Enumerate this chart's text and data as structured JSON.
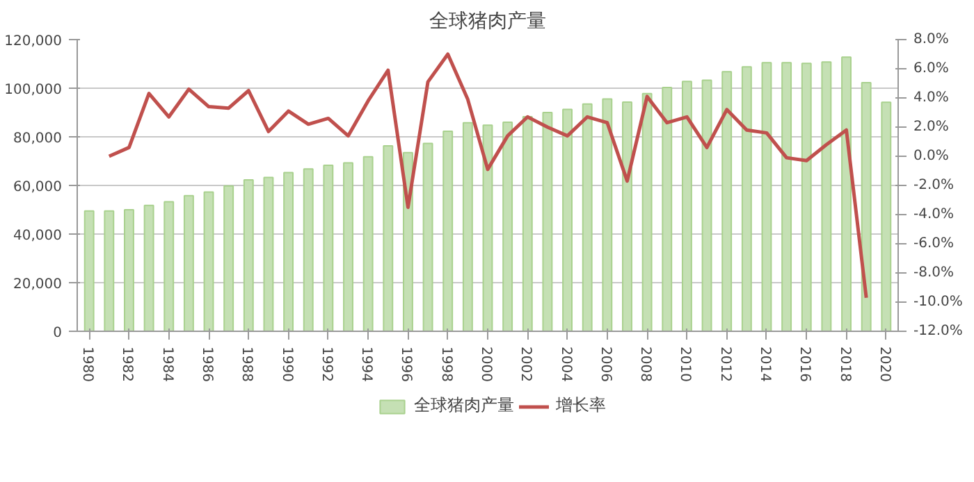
{
  "chart_data": {
    "type": "bar",
    "title": "全球猪肉产量",
    "categories": [
      "1980",
      null,
      "1982",
      null,
      "1984",
      null,
      "1986",
      null,
      "1988",
      null,
      "1990",
      null,
      "1992",
      null,
      "1994",
      null,
      "1996",
      null,
      "1998",
      null,
      "2000",
      null,
      "2002",
      null,
      "2004",
      null,
      "2006",
      null,
      "2008",
      null,
      "2010",
      null,
      "2012",
      null,
      "2014",
      null,
      "2016",
      null,
      "2018",
      null,
      "2020"
    ],
    "series": [
      {
        "name": "全球猪肉产量",
        "color": "#c5e0b4",
        "values": [
          49500,
          49500,
          50000,
          51800,
          53300,
          55800,
          57300,
          59800,
          62300,
          63300,
          65300,
          66800,
          68300,
          69300,
          71800,
          76300,
          73500,
          77300,
          82300,
          85800,
          84800,
          86000,
          88300,
          90000,
          91300,
          93500,
          95600,
          94300,
          97800,
          100300,
          102800,
          103300,
          106800,
          108800,
          110500,
          110500,
          110200,
          110800,
          112800,
          102300,
          94200
        ]
      },
      {
        "name": "增长率",
        "type": "line",
        "axis": "y2",
        "color": "#c0504d",
        "values": [
          null,
          0.0,
          0.6,
          4.3,
          2.7,
          4.6,
          3.4,
          3.3,
          4.5,
          1.7,
          3.1,
          2.2,
          2.6,
          1.4,
          3.8,
          5.9,
          -3.5,
          5.1,
          7.0,
          3.9,
          -0.9,
          1.4,
          2.7,
          2.0,
          1.4,
          2.7,
          2.3,
          -1.7,
          4.1,
          2.3,
          2.7,
          0.6,
          3.2,
          1.8,
          1.6,
          -0.1,
          -0.3,
          0.8,
          1.8,
          -9.7,
          null
        ]
      }
    ],
    "ylim": [
      0,
      120000
    ],
    "yticks": [
      0,
      {
        "value": 20000,
        "label": "20,000"
      },
      {
        "value": 40000,
        "label": "40,000"
      },
      {
        "value": 60000,
        "label": "60,000"
      },
      {
        "value": 80000,
        "label": "80,000"
      },
      {
        "value": 100000,
        "label": "100,000"
      },
      {
        "value": 120000,
        "label": "120,000"
      }
    ],
    "y2lim": [
      -12,
      8
    ],
    "y2ticks": [
      {
        "value": -12,
        "label": "-12.0%"
      },
      {
        "value": -10,
        "label": "-10.0%"
      },
      {
        "value": -8,
        "label": "-8.0%"
      },
      {
        "value": -6,
        "label": "-6.0%"
      },
      {
        "value": -4,
        "label": "-4.0%"
      },
      {
        "value": -2,
        "label": "-2.0%"
      },
      {
        "value": 0,
        "label": "0.0%"
      },
      {
        "value": 2,
        "label": "2.0%"
      },
      {
        "value": 4,
        "label": "4.0%"
      },
      {
        "value": 6,
        "label": "6.0%"
      },
      {
        "value": 8,
        "label": "8.0%"
      }
    ],
    "grid": "y",
    "legend": "bottom"
  }
}
